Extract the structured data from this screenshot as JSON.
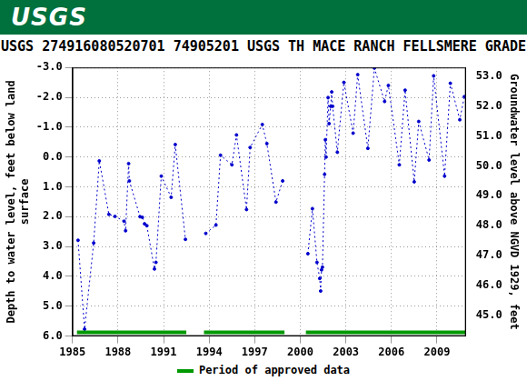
{
  "header": {
    "logo": "USGS"
  },
  "chart_data": {
    "type": "line",
    "title": "USGS 274916080520701 74905201 USGS TH MACE RANCH FELLSMERE GRADE",
    "y_label": [
      "Depth to water level, feet below land",
      "surface"
    ],
    "y2_label": "Groundwater level above NGVD 1929, feet",
    "x": [
      1985.37,
      1985.8,
      1986.4,
      1986.77,
      1987.4,
      1987.8,
      1988.4,
      1988.5,
      1988.7,
      1988.75,
      1989.45,
      1989.6,
      1989.75,
      1989.9,
      1990.4,
      1990.5,
      1990.85,
      1991.5,
      1991.77,
      1992.44,
      1993.1,
      1993.78,
      1994.45,
      1994.75,
      1995.5,
      1995.8,
      1996.46,
      1996.7,
      1997.5,
      1997.8,
      1998.4,
      1998.84,
      1999.7,
      2000.5,
      2000.8,
      2001.1,
      2001.28,
      2001.34,
      2001.4,
      2001.46,
      2001.6,
      2001.65,
      2001.7,
      2001.83,
      2001.9,
      2002.0,
      2002.07,
      2002.13,
      2002.44,
      2002.87,
      2003.48,
      2003.78,
      2004.45,
      2004.88,
      2005.55,
      2005.8,
      2006.52,
      2006.9,
      2007.5,
      2007.8,
      2008.48,
      2008.78,
      2009.5,
      2009.88,
      2010.5,
      2010.8
    ],
    "values": [
      2.79,
      5.77,
      2.88,
      0.13,
      1.92,
      1.99,
      2.15,
      2.47,
      0.22,
      0.8,
      2.0,
      2.02,
      2.24,
      2.3,
      3.75,
      3.53,
      0.64,
      1.35,
      -0.42,
      2.76,
      null,
      2.56,
      2.28,
      -0.06,
      0.26,
      -0.74,
      1.76,
      -0.32,
      -1.09,
      -0.45,
      1.51,
      0.8,
      null,
      3.24,
      1.73,
      3.53,
      4.07,
      4.49,
      3.78,
      3.69,
      0.58,
      -0.58,
      0.0,
      -1.99,
      -1.12,
      -1.7,
      -2.18,
      -1.7,
      -0.16,
      -2.5,
      -0.8,
      -2.76,
      -0.29,
      -2.98,
      -1.86,
      -2.4,
      0.26,
      -2.24,
      0.83,
      -1.19,
      0.1,
      -2.72,
      0.64,
      -2.47,
      -1.25,
      -2.02
    ],
    "color": "#0000cc",
    "marker": "circle",
    "line_style": "dotted",
    "xlim": [
      1985,
      2010.9
    ],
    "xticks": [
      1985,
      1988,
      1991,
      1994,
      1997,
      2000,
      2003,
      2006,
      2009
    ],
    "ylim": [
      -3,
      6
    ],
    "yticks": [
      {
        "value": -3,
        "label": "-3.0"
      },
      {
        "value": -2,
        "label": "-2.0"
      },
      {
        "value": -1,
        "label": "-1.0"
      },
      {
        "value": 0,
        "label": "0.0"
      },
      {
        "value": 1,
        "label": "1.0"
      },
      {
        "value": 2,
        "label": "2.0"
      },
      {
        "value": 3,
        "label": "3.0"
      },
      {
        "value": 4,
        "label": "4.0"
      },
      {
        "value": 5,
        "label": "5.0"
      },
      {
        "value": 6,
        "label": "6.0"
      }
    ],
    "y2lim": [
      44.3,
      53.3
    ],
    "y2ticks": [
      {
        "value": 45,
        "label": "45.0"
      },
      {
        "value": 46,
        "label": "46.0"
      },
      {
        "value": 47,
        "label": "47.0"
      },
      {
        "value": 48,
        "label": "48.0"
      },
      {
        "value": 49,
        "label": "49.0"
      },
      {
        "value": 50,
        "label": "50.0"
      },
      {
        "value": 51,
        "label": "51.0"
      },
      {
        "value": 52,
        "label": "52.0"
      },
      {
        "value": 53,
        "label": "53.0"
      }
    ],
    "grid": true,
    "legend": "bottom",
    "approved_periods": {
      "name": "Period of approved data",
      "color": "#009900",
      "ranges": [
        [
          1985.3,
          1992.5
        ],
        [
          1993.66,
          1998.96
        ],
        [
          2000.37,
          2010.9
        ]
      ]
    }
  }
}
